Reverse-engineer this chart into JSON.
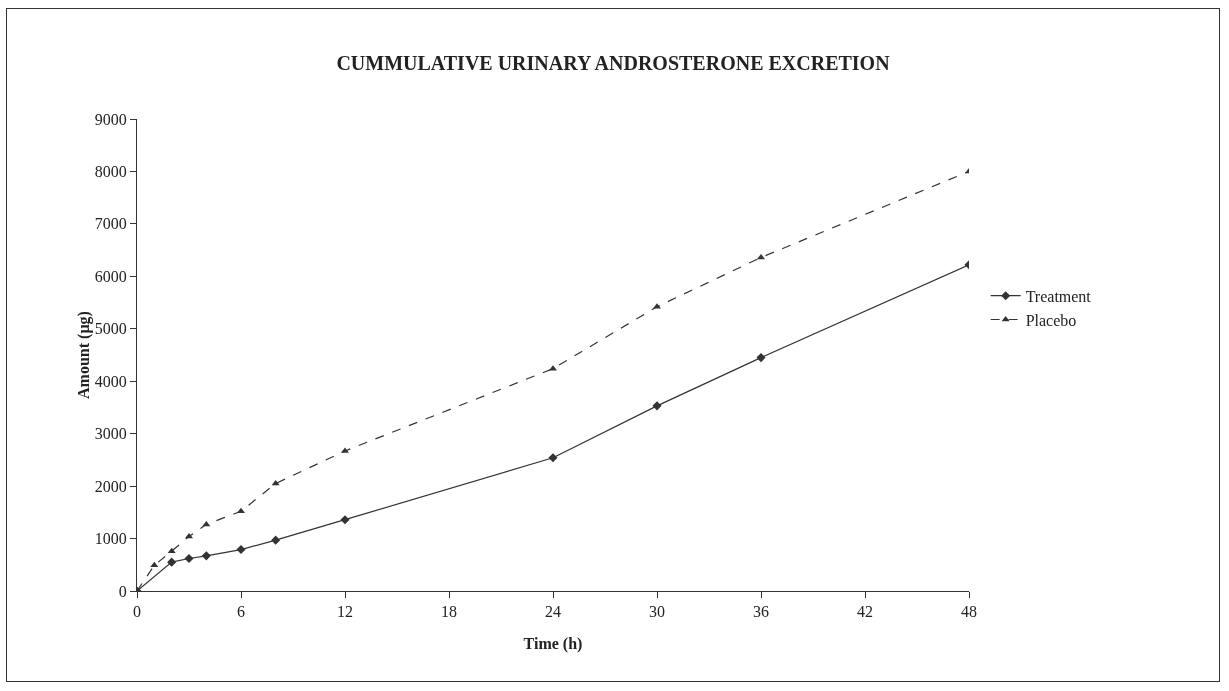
{
  "chart_data": {
    "type": "line",
    "title": "CUMMULATIVE URINARY ANDROSTERONE EXCRETION",
    "xlabel": "Time (h)",
    "ylabel": "Amount (µg)",
    "x": [
      0,
      1,
      2,
      3,
      4,
      6,
      8,
      12,
      24,
      30,
      36,
      48
    ],
    "series": [
      {
        "name": "Treatment",
        "color": "#333333",
        "marker": "diamond",
        "line_style": "solid",
        "values": [
          0,
          null,
          550,
          620,
          670,
          790,
          970,
          1360,
          2540,
          3530,
          4450,
          6220
        ]
      },
      {
        "name": "Placebo",
        "color": "#333333",
        "marker": "triangle",
        "line_style": "dashed",
        "values": [
          0,
          490,
          760,
          1040,
          1270,
          1520,
          2050,
          2670,
          4240,
          5420,
          6360,
          8000
        ]
      }
    ],
    "xlim": [
      0,
      48
    ],
    "xticks": [
      0,
      6,
      12,
      18,
      24,
      30,
      36,
      42,
      48
    ],
    "ylim": [
      0,
      9000
    ],
    "yticks": [
      0,
      1000,
      2000,
      3000,
      4000,
      5000,
      6000,
      7000,
      8000,
      9000
    ],
    "grid": false,
    "legend": "right"
  }
}
